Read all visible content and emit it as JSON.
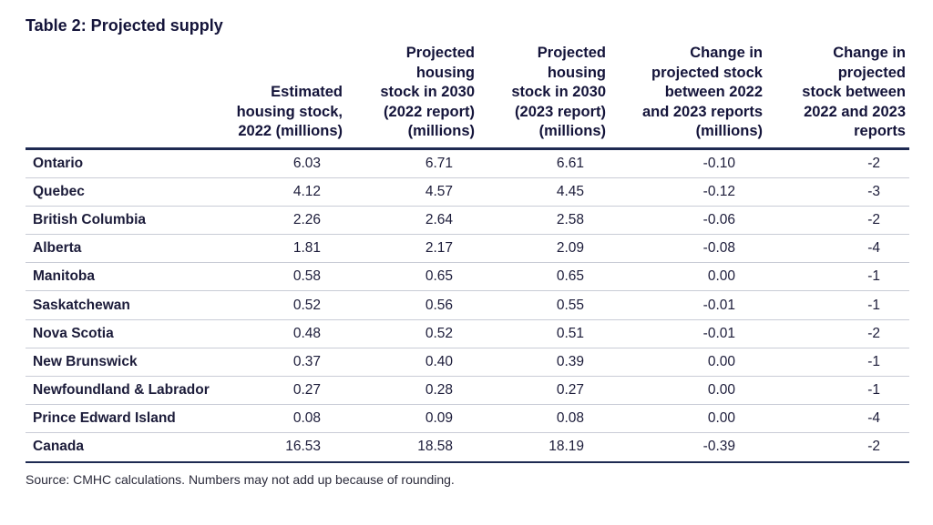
{
  "title": "Table 2: Projected supply",
  "table": {
    "headers": [
      "",
      "Estimated housing stock, 2022 (millions)",
      "Projected housing stock in 2030 (2022 report) (millions)",
      "Projected housing stock in 2030 (2023 report) (millions)",
      "Change in projected stock between 2022 and 2023 reports (millions)",
      "Change in projected stock between 2022 and 2023 reports"
    ],
    "header_lines": [
      [],
      [
        "Estimated",
        "housing stock,",
        "2022 (millions)"
      ],
      [
        "Projected",
        "housing",
        "stock in 2030",
        "(2022 report)",
        "(millions)"
      ],
      [
        "Projected",
        "housing",
        "stock in 2030",
        "(2023 report)",
        "(millions)"
      ],
      [
        "Change in",
        "projected stock",
        "between 2022",
        "and 2023 reports",
        "(millions)"
      ],
      [
        "Change in",
        "projected",
        "stock between",
        "2022 and 2023",
        "reports"
      ]
    ],
    "rows": [
      [
        "Ontario",
        "6.03",
        "6.71",
        "6.61",
        "-0.10",
        "-2"
      ],
      [
        "Quebec",
        "4.12",
        "4.57",
        "4.45",
        "-0.12",
        "-3"
      ],
      [
        "British Columbia",
        "2.26",
        "2.64",
        "2.58",
        "-0.06",
        "-2"
      ],
      [
        "Alberta",
        "1.81",
        "2.17",
        "2.09",
        "-0.08",
        "-4"
      ],
      [
        "Manitoba",
        "0.58",
        "0.65",
        "0.65",
        "0.00",
        "-1"
      ],
      [
        "Saskatchewan",
        "0.52",
        "0.56",
        "0.55",
        "-0.01",
        "-1"
      ],
      [
        "Nova Scotia",
        "0.48",
        "0.52",
        "0.51",
        "-0.01",
        "-2"
      ],
      [
        "New Brunswick",
        "0.37",
        "0.40",
        "0.39",
        "0.00",
        "-1"
      ],
      [
        "Newfoundland & Labrador",
        "0.27",
        "0.28",
        "0.27",
        "0.00",
        "-1"
      ],
      [
        "Prince Edward Island",
        "0.08",
        "0.09",
        "0.08",
        "0.00",
        "-4"
      ],
      [
        "Canada",
        "16.53",
        "18.58",
        "18.19",
        "-0.39",
        "-2"
      ]
    ]
  },
  "source": "Source: CMHC calculations. Numbers may not add up because of rounding."
}
